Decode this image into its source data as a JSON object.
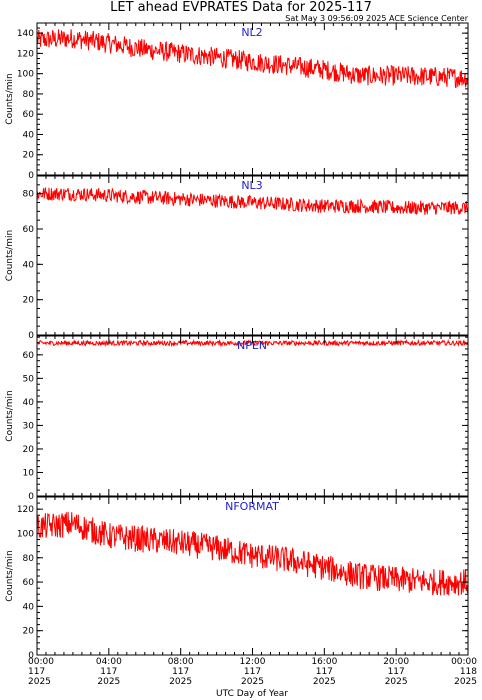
{
  "page": {
    "title": "LET ahead EVPRATES Data for 2025-117",
    "subtitle": "Sat May  3 09:56:09 2025 ACE Science Center",
    "xlabel": "UTC Day of Year"
  },
  "colors": {
    "series": "#ff0000",
    "panel_label": "#1f1fd0",
    "axis": "#000000"
  },
  "x_ticks": [
    {
      "time": "00:00",
      "doy": "117",
      "year": "2025"
    },
    {
      "time": "04:00",
      "doy": "117",
      "year": "2025"
    },
    {
      "time": "08:00",
      "doy": "117",
      "year": "2025"
    },
    {
      "time": "12:00",
      "doy": "117",
      "year": "2025"
    },
    {
      "time": "16:00",
      "doy": "117",
      "year": "2025"
    },
    {
      "time": "20:00",
      "doy": "117",
      "year": "2025"
    },
    {
      "time": "00:00",
      "doy": "118",
      "year": "2025"
    }
  ],
  "chart_data": [
    {
      "type": "line",
      "name": "NL2",
      "ylabel": "Counts/min",
      "ylim": [
        0,
        150
      ],
      "y_ticks": [
        0,
        20,
        40,
        60,
        80,
        100,
        120,
        140
      ],
      "x_hours": [
        0,
        2,
        4,
        6,
        8,
        10,
        12,
        14,
        16,
        18,
        20,
        22,
        24
      ],
      "values": [
        133,
        135,
        130,
        124,
        120,
        116,
        112,
        108,
        104,
        98,
        98,
        97,
        96
      ],
      "noise": 10
    },
    {
      "type": "line",
      "name": "NL3",
      "ylabel": "Counts/min",
      "ylim": [
        0,
        90
      ],
      "y_ticks": [
        0,
        20,
        40,
        60,
        80
      ],
      "x_hours": [
        0,
        2,
        4,
        6,
        8,
        10,
        12,
        14,
        16,
        18,
        20,
        22,
        24
      ],
      "values": [
        80,
        80,
        79,
        78,
        77,
        76,
        75,
        74,
        73,
        73,
        72,
        72,
        72
      ],
      "noise": 4
    },
    {
      "type": "line",
      "name": "NPEN",
      "ylabel": "Counts/min",
      "ylim": [
        0,
        68
      ],
      "y_ticks": [
        0,
        10,
        20,
        30,
        40,
        50,
        60
      ],
      "x_hours": [
        0,
        2,
        4,
        6,
        8,
        10,
        12,
        14,
        16,
        18,
        20,
        22,
        24
      ],
      "values": [
        65,
        65,
        65,
        65,
        65,
        65,
        65,
        65,
        65,
        65,
        65,
        65,
        65
      ],
      "noise": 1
    },
    {
      "type": "line",
      "name": "NFORMAT",
      "ylabel": "Counts/min",
      "ylim": [
        0,
        130
      ],
      "y_ticks": [
        0,
        20,
        40,
        60,
        80,
        100,
        120
      ],
      "x_hours": [
        0,
        2,
        4,
        6,
        8,
        10,
        12,
        14,
        16,
        18,
        20,
        22,
        24
      ],
      "values": [
        105,
        108,
        98,
        95,
        92,
        88,
        82,
        78,
        72,
        65,
        62,
        60,
        60
      ],
      "noise": 11
    }
  ]
}
